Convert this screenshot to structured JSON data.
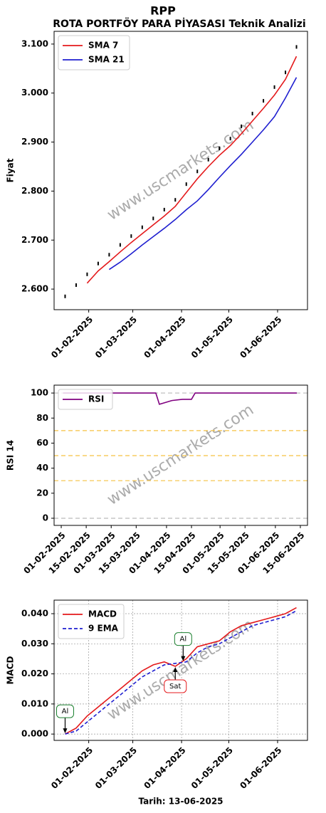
{
  "chart_data": [
    {
      "type": "line",
      "title": "RPP",
      "subtitle": "ROTA PORTFÖY PARA PİYASASI Teknik Analizi",
      "ylabel": "Fiyat",
      "watermark": "www.uscmarkets.com",
      "legend": "upper left",
      "grid": false,
      "x": [
        "17-01-2025",
        "24-01-2025",
        "31-01-2025",
        "07-02-2025",
        "14-02-2025",
        "21-02-2025",
        "28-02-2025",
        "07-03-2025",
        "14-03-2025",
        "21-03-2025",
        "28-03-2025",
        "04-04-2025",
        "11-04-2025",
        "18-04-2025",
        "25-04-2025",
        "02-05-2025",
        "09-05-2025",
        "16-05-2025",
        "23-05-2025",
        "30-05-2025",
        "06-06-2025",
        "13-06-2025"
      ],
      "values": [
        2.583,
        2.606,
        2.628,
        2.65,
        2.668,
        2.688,
        2.706,
        2.724,
        2.742,
        2.76,
        2.78,
        2.812,
        2.838,
        2.862,
        2.885,
        2.905,
        2.93,
        2.956,
        2.982,
        3.01,
        3.04,
        3.092
      ],
      "color": "#000000",
      "series": [
        {
          "name": "SMA 7",
          "color": "#e41a1c",
          "values": [
            null,
            null,
            2.612,
            2.637,
            2.656,
            2.676,
            2.695,
            2.713,
            2.731,
            2.749,
            2.769,
            2.797,
            2.825,
            2.85,
            2.873,
            2.893,
            2.917,
            2.943,
            2.969,
            2.996,
            3.028,
            3.075
          ]
        },
        {
          "name": "SMA 21",
          "color": "#1f1fd0",
          "values": [
            null,
            null,
            null,
            null,
            2.64,
            2.655,
            2.672,
            2.69,
            2.707,
            2.724,
            2.742,
            2.762,
            2.78,
            2.803,
            2.828,
            2.852,
            2.875,
            2.9,
            2.925,
            2.952,
            2.99,
            3.032
          ]
        }
      ],
      "xlim": [
        "10-01-2025",
        "20-06-2025"
      ],
      "xticks": [
        "01-02-2025",
        "01-03-2025",
        "01-04-2025",
        "01-05-2025",
        "01-06-2025"
      ],
      "ylim": [
        2.558,
        3.126
      ],
      "yticks": [
        {
          "value": 2.6,
          "label": "2.600"
        },
        {
          "value": 2.7,
          "label": "2.700"
        },
        {
          "value": 2.8,
          "label": "2.800"
        },
        {
          "value": 2.9,
          "label": "2.900"
        },
        {
          "value": 3.0,
          "label": "3.000"
        },
        {
          "value": 3.1,
          "label": "3.100"
        }
      ]
    },
    {
      "type": "line",
      "ylabel": "RSI 14",
      "watermark": "www.uscmarkets.com",
      "legend": "upper left",
      "grid": false,
      "x": [
        "02-02-2025",
        "26-03-2025",
        "28-03-2025",
        "04-04-2025",
        "10-04-2025",
        "15-04-2025",
        "17-04-2025",
        "13-06-2025"
      ],
      "series": [
        {
          "name": "RSI",
          "color": "#800080",
          "values": [
            100,
            100,
            91,
            94,
            95,
            95,
            100,
            100
          ]
        }
      ],
      "hlines": [
        {
          "value": 0,
          "color": "#bbbbbb"
        },
        {
          "value": 30,
          "color": "#f5c242"
        },
        {
          "value": 50,
          "color": "#f5c242"
        },
        {
          "value": 70,
          "color": "#f5c242"
        },
        {
          "value": 100,
          "color": "#bbbbbb"
        }
      ],
      "xlim": [
        "28-01-2025",
        "19-06-2025"
      ],
      "xticks": [
        "01-02-2025",
        "15-02-2025",
        "01-03-2025",
        "15-03-2025",
        "01-04-2025",
        "15-04-2025",
        "01-05-2025",
        "15-05-2025",
        "01-06-2025",
        "15-06-2025"
      ],
      "ylim": [
        -5.7,
        106.3
      ],
      "yticks": [
        0,
        20,
        40,
        60,
        80,
        100
      ]
    },
    {
      "type": "line",
      "ylabel": "MACD",
      "xlabel": "Tarih: 13-06-2025",
      "watermark": "www.uscmarkets.com",
      "legend": "upper left",
      "grid": true,
      "x": [
        "17-01-2025",
        "24-01-2025",
        "31-01-2025",
        "07-02-2025",
        "14-02-2025",
        "21-02-2025",
        "28-02-2025",
        "07-03-2025",
        "14-03-2025",
        "21-03-2025",
        "28-03-2025",
        "04-04-2025",
        "11-04-2025",
        "18-04-2025",
        "25-04-2025",
        "02-05-2025",
        "09-05-2025",
        "16-05-2025",
        "23-05-2025",
        "30-05-2025",
        "06-06-2025",
        "13-06-2025"
      ],
      "series": [
        {
          "name": "MACD",
          "color": "#e41a1c",
          "values": [
            0.0,
            0.002,
            0.006,
            0.009,
            0.012,
            0.015,
            0.018,
            0.021,
            0.023,
            0.024,
            0.0225,
            0.025,
            0.029,
            0.03,
            0.031,
            0.034,
            0.036,
            0.037,
            0.038,
            0.039,
            0.04,
            0.042
          ]
        },
        {
          "name": "9 EMA",
          "color": "#1f1fd0",
          "dash": true,
          "values": [
            0.0,
            0.001,
            0.004,
            0.007,
            0.01,
            0.013,
            0.016,
            0.019,
            0.021,
            0.023,
            0.0235,
            0.024,
            0.027,
            0.029,
            0.03,
            0.032,
            0.034,
            0.036,
            0.037,
            0.038,
            0.039,
            0.041
          ]
        }
      ],
      "annotations": [
        {
          "text": "Al",
          "x": "17-01-2025",
          "y": 0.0,
          "color": "#1a7f2e"
        },
        {
          "text": "Sat",
          "x": "28-03-2025",
          "y": 0.0225,
          "color": "#e41a1c"
        },
        {
          "text": "Al",
          "x": "02-04-2025",
          "y": 0.024,
          "color": "#1a7f2e"
        }
      ],
      "xlim": [
        "10-01-2025",
        "20-06-2025"
      ],
      "xticks": [
        "01-02-2025",
        "01-03-2025",
        "01-04-2025",
        "01-05-2025",
        "01-06-2025"
      ],
      "ylim": [
        -0.0021,
        0.0445
      ],
      "yticks": [
        {
          "value": 0,
          "label": "0.000"
        },
        {
          "value": 0.01,
          "label": "0.010"
        },
        {
          "value": 0.02,
          "label": "0.020"
        },
        {
          "value": 0.03,
          "label": "0.030"
        },
        {
          "value": 0.04,
          "label": "0.040"
        }
      ]
    }
  ]
}
